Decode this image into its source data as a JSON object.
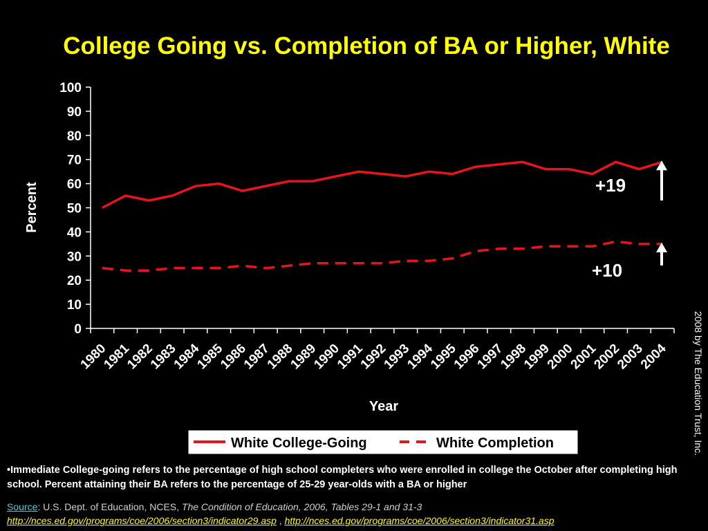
{
  "chart_data": {
    "type": "line",
    "title": "College Going vs. Completion of BA or Higher, White",
    "xlabel": "Year",
    "ylabel": "Percent",
    "ylim": [
      0,
      100
    ],
    "yticks": [
      "0",
      "10",
      "20",
      "30",
      "40",
      "50",
      "60",
      "70",
      "80",
      "90",
      "100"
    ],
    "categories": [
      "1980",
      "1981",
      "1982",
      "1983",
      "1984",
      "1985",
      "1986",
      "1987",
      "1988",
      "1989",
      "1990",
      "1991",
      "1992",
      "1993",
      "1994",
      "1995",
      "1996",
      "1997",
      "1998",
      "1999",
      "2000",
      "2001",
      "2002",
      "2003",
      "2004"
    ],
    "series": [
      {
        "name": "White College-Going",
        "style": "solid",
        "color": "#e8141c",
        "values": [
          50,
          55,
          53,
          55,
          59,
          60,
          57,
          59,
          61,
          61,
          63,
          65,
          64,
          63,
          65,
          64,
          67,
          68,
          69,
          66,
          66,
          64,
          69,
          66,
          69
        ]
      },
      {
        "name": "White Completion",
        "style": "dashed",
        "color": "#e8141c",
        "values": [
          25,
          24,
          24,
          25,
          25,
          25,
          26,
          25,
          26,
          27,
          27,
          27,
          27,
          28,
          28,
          29,
          32,
          33,
          33,
          34,
          34,
          34,
          36,
          35,
          35
        ]
      }
    ],
    "grid": false,
    "legend": "bottom",
    "annotations": [
      "+19",
      "+10"
    ]
  },
  "copyright": "2008 by The Education Trust, Inc.",
  "footnote": "•Immediate College-going refers to the percentage of high school completers who were enrolled in college the October after completing high school.  Percent attaining their BA refers to the percentage of 25-29 year-olds with a BA or higher",
  "source": {
    "label": "Source",
    "text": ":  U.S. Dept. of Education, NCES, ",
    "publication": "The Condition of Education, 2006, Tables 29-1 and 31-3",
    "separator": " , ",
    "link1": "http://nces.ed.gov/programs/coe/2006/section3/indicator29.asp",
    "link2": "http://nces.ed.gov/programs/coe/2006/section3/indicator31.asp"
  },
  "colors": {
    "background": "#000000",
    "title": "#ffff00",
    "series": "#e8141c",
    "axis": "#ffffff",
    "source_label": "#3fd1e6",
    "links": "#ffff00"
  }
}
